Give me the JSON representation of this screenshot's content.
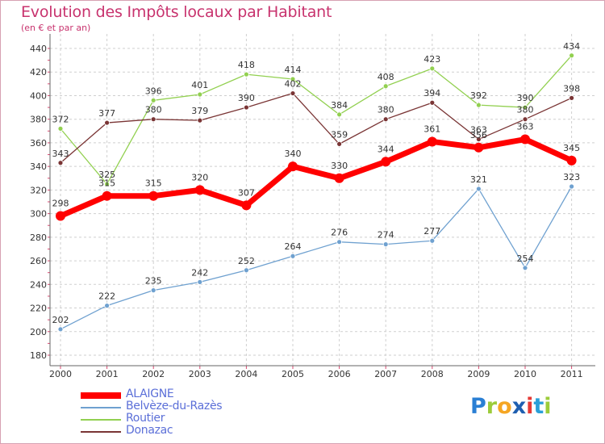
{
  "header": {
    "title": "Evolution des Impôts locaux par Habitant",
    "subtitle": "(en € et par an)"
  },
  "chart_data": {
    "type": "line",
    "title": "Evolution des Impôts locaux par Habitant",
    "subtitle": "(en € et par an)",
    "xlabel": "",
    "ylabel": "",
    "x": [
      "2000",
      "2001",
      "2002",
      "2003",
      "2004",
      "2005",
      "2006",
      "2007",
      "2008",
      "2009",
      "2010",
      "2011"
    ],
    "y_ticks": [
      180,
      200,
      220,
      240,
      260,
      280,
      300,
      320,
      340,
      360,
      380,
      400,
      420,
      440
    ],
    "ylim": [
      180,
      440
    ],
    "grid": "horizontal dashed",
    "legend_position": "bottom-left",
    "series": [
      {
        "name": "ALAIGNE",
        "color": "#ff0000",
        "values": [
          298,
          315,
          315,
          320,
          307,
          340,
          330,
          344,
          361,
          356,
          363,
          345
        ],
        "labels": [
          "298",
          "315",
          "315",
          "320",
          "307",
          "340",
          "330",
          "344",
          "361",
          "356",
          "363",
          "345"
        ]
      },
      {
        "name": "Belvèze-du-Razès",
        "color": "#6fa1d0",
        "values": [
          202,
          222,
          235,
          242,
          252,
          264,
          276,
          274,
          277,
          321,
          254,
          323
        ],
        "labels": [
          "202",
          "222",
          "235",
          "242",
          "252",
          "264",
          "276",
          "274",
          "277",
          "321",
          "254",
          "323"
        ]
      },
      {
        "name": "Routier",
        "color": "#92d050",
        "values": [
          372,
          325,
          396,
          401,
          418,
          414,
          384,
          408,
          423,
          392,
          390,
          434
        ],
        "labels": [
          "372",
          "325",
          "396",
          "401",
          "418",
          "414",
          "384",
          "408",
          "423",
          "392",
          "390",
          "434"
        ]
      },
      {
        "name": "Donazac",
        "color": "#7a3535",
        "values": [
          343,
          377,
          380,
          379,
          390,
          402,
          359,
          380,
          394,
          363,
          380,
          398
        ],
        "labels": [
          "343",
          "377",
          "380",
          "379",
          "390",
          "402",
          "359",
          "380",
          "394",
          "363",
          "380",
          "398"
        ]
      }
    ]
  },
  "logo": {
    "letters": [
      "P",
      "r",
      "o",
      "x",
      "i",
      "t",
      "i"
    ],
    "colors": [
      "#2a7fd4",
      "#9ccc3a",
      "#f5a623",
      "#1f5fb0",
      "#e53935",
      "#2a9fd8",
      "#9ccc3a"
    ]
  }
}
